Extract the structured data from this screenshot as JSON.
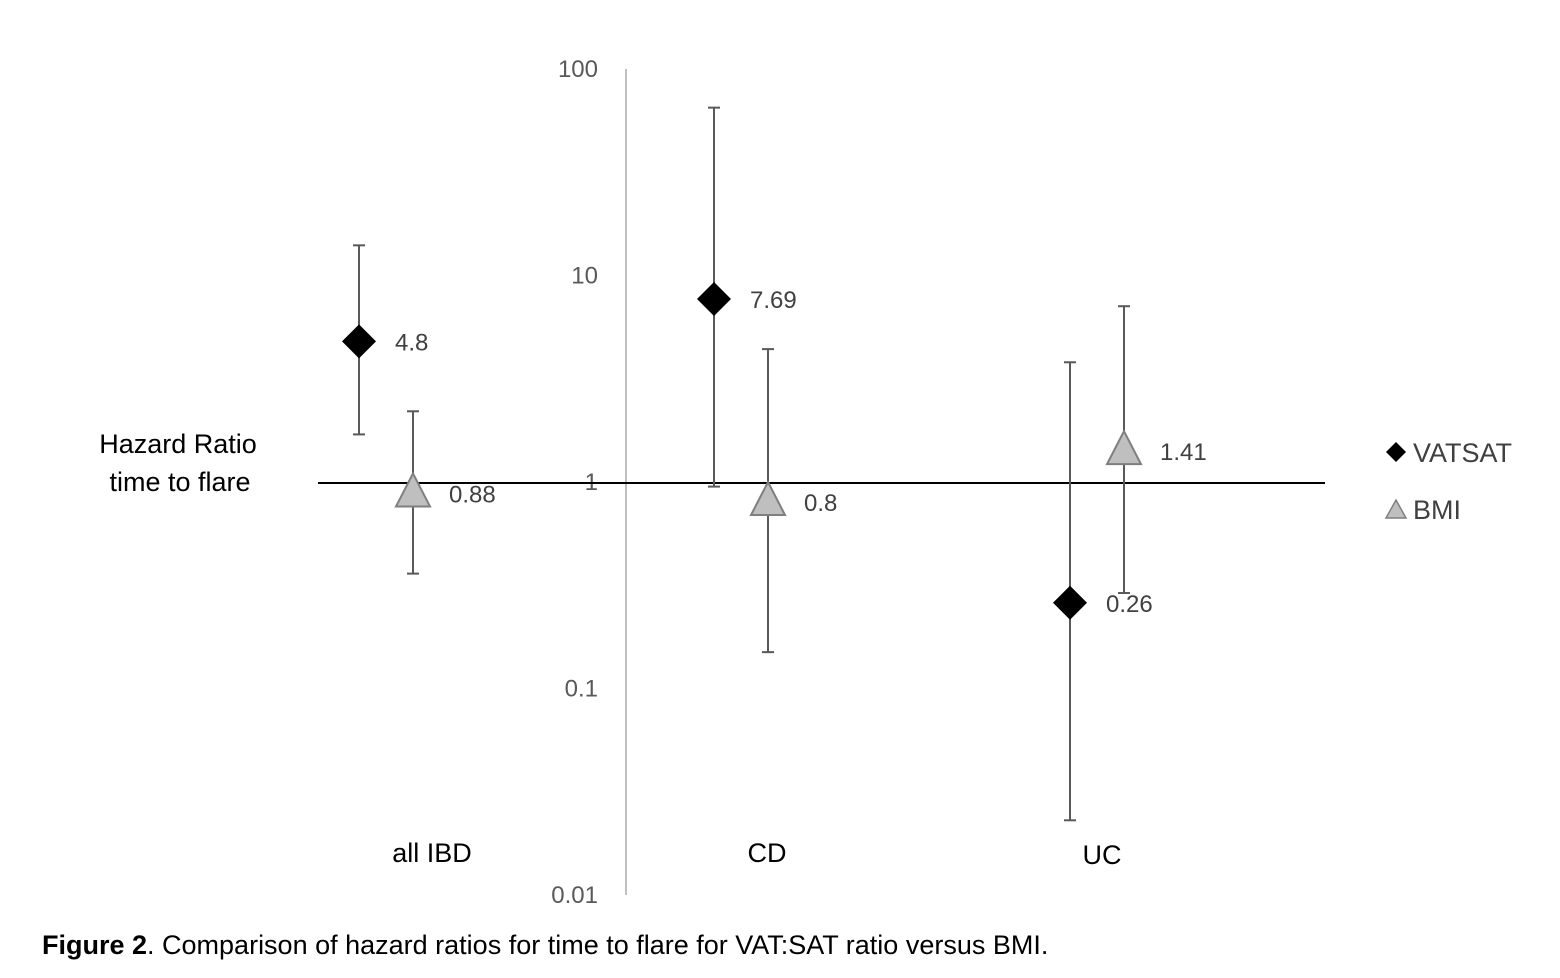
{
  "chart_data": {
    "type": "scatter",
    "categories": [
      "all IBD",
      "CD",
      "UC"
    ],
    "y_scale": "log",
    "ylim": [
      0.01,
      100
    ],
    "y_ticks": [
      "0.01",
      "0.1",
      "1",
      "10",
      "100"
    ],
    "ylabel_lines": [
      "Hazard Ratio",
      "time to flare"
    ],
    "reference_line": 1,
    "grid": false,
    "legend_position": "right",
    "series": [
      {
        "name": "VATSAT",
        "marker": "diamond",
        "color": "#000000",
        "values": [
          4.8,
          7.69,
          0.26
        ],
        "ci_low": [
          1.7,
          0.95,
          0.023
        ],
        "ci_high": [
          14,
          65,
          3.8
        ],
        "labels": [
          "4.8",
          "7.69",
          "0.26"
        ]
      },
      {
        "name": "BMI",
        "marker": "triangle",
        "color": "#bfbfbf",
        "values": [
          0.88,
          0.8,
          1.41
        ],
        "ci_low": [
          0.36,
          0.15,
          0.29
        ],
        "ci_high": [
          2.2,
          4.4,
          7.1
        ],
        "labels": [
          "0.88",
          "0.8",
          "1.41"
        ]
      }
    ]
  },
  "caption": {
    "label": "Figure 2",
    "text": ".  Comparison of hazard ratios for time to flare for VAT:SAT ratio versus BMI."
  }
}
